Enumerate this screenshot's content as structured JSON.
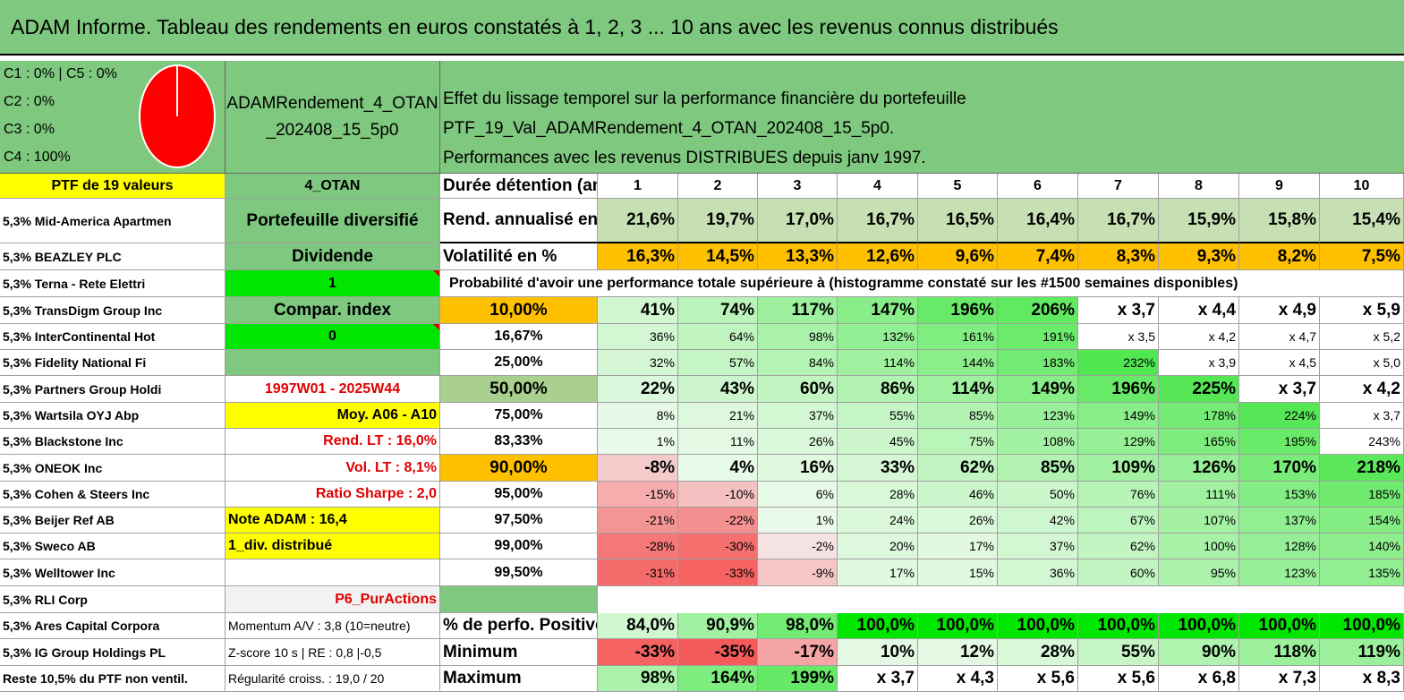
{
  "title": "ADAM Informe. Tableau des rendements en euros constatés à 1, 2, 3 ... 10 ans avec les revenus connus distribués",
  "header": {
    "c1c5": "C1 : 0% | C5 : 0%",
    "c2": "C2 : 0%",
    "c3": "C3 : 0%",
    "c4": "C4 : 100%",
    "pie": {
      "slices": [
        {
          "name": "C4",
          "value": 100,
          "color": "#ff0000"
        }
      ],
      "outline": "#ffffff"
    },
    "portfolio_line1": "ADAMRendement_4_OTAN",
    "portfolio_line2": "_202408_15_5p0",
    "desc_line1": "Effet du lissage temporel sur la performance financière du portefeuille PTF_19_Val_ADAMRendement_4_OTAN_202408_15_5p0.",
    "desc_line2": "Performances avec les revenus DISTRIBUES depuis janv 1997."
  },
  "colors": {
    "header_green": "#7fc87f",
    "yellow": "#ffff00",
    "bright_green": "#00e600",
    "orange": "#ffc000",
    "red_text": "#e00000"
  },
  "left_header": "PTF de 19 valeurs",
  "holdings": [
    "5,3% Mid-America Apartmen",
    "5,3% BEAZLEY PLC",
    "5,3% Terna - Rete Elettri",
    "5,3% TransDigm Group Inc",
    "5,3% InterContinental Hot",
    "5,3% Fidelity National Fi",
    "5,3% Partners Group Holdi",
    "5,3% Wartsila OYJ Abp",
    "5,3% Blackstone Inc",
    "5,3% ONEOK Inc",
    "5,3% Cohen & Steers Inc",
    "5,3% Beijer Ref AB",
    "5,3% Sweco AB",
    "5,3% Welltower Inc",
    "5,3% RLI Corp",
    "5,3% Ares Capital Corpora",
    "5,3% IG Group Holdings PL",
    "Reste 10,5% du PTF non ventil."
  ],
  "mid_col": [
    "4_OTAN",
    "Portefeuille diversifié",
    "Dividende",
    "1",
    "Compar. index",
    "0",
    "",
    "1997W01 - 2025W44",
    "Moy. A06 - A10",
    "Rend. LT : 16,0%",
    "Vol. LT : 8,1%",
    "Ratio Sharpe : 2,0",
    "Note ADAM : 16,4",
    "1_div. distribué",
    "",
    "P6_PurActions",
    "Momentum A/V : 3,8 (10=neutre)",
    "Z-score 10 s | RE : 0,8 |-0,5",
    "Régularité croiss. : 19,0 / 20"
  ],
  "table": {
    "duration_label": "Durée détention (an)",
    "years": [
      "1",
      "2",
      "3",
      "4",
      "5",
      "6",
      "7",
      "8",
      "9",
      "10"
    ],
    "rend_label": "Rend. annualisé en %",
    "rend": [
      "21,6%",
      "19,7%",
      "17,0%",
      "16,7%",
      "16,5%",
      "16,4%",
      "16,7%",
      "15,9%",
      "15,8%",
      "15,4%"
    ],
    "vol_label": "Volatilité en %",
    "vol": [
      "16,3%",
      "14,5%",
      "13,3%",
      "12,6%",
      "9,6%",
      "7,4%",
      "8,3%",
      "9,3%",
      "8,2%",
      "7,5%"
    ],
    "prob_title": "Probabilité d'avoir une performance totale supérieure à (histogramme constaté sur les #1500 semaines disponibles)",
    "prob_rows": [
      {
        "p": "10,00%",
        "v": [
          "41%",
          "74%",
          "117%",
          "147%",
          "196%",
          "206%",
          "x 3,7",
          "x 4,4",
          "x 4,9",
          "x 5,9"
        ]
      },
      {
        "p": "16,67%",
        "v": [
          "36%",
          "64%",
          "98%",
          "132%",
          "161%",
          "191%",
          "x 3,5",
          "x 4,2",
          "x 4,7",
          "x 5,2"
        ]
      },
      {
        "p": "25,00%",
        "v": [
          "32%",
          "57%",
          "84%",
          "114%",
          "144%",
          "183%",
          "232%",
          "x 3,9",
          "x 4,5",
          "x 5,0"
        ]
      },
      {
        "p": "50,00%",
        "v": [
          "22%",
          "43%",
          "60%",
          "86%",
          "114%",
          "149%",
          "196%",
          "225%",
          "x 3,7",
          "x 4,2"
        ]
      },
      {
        "p": "75,00%",
        "v": [
          "8%",
          "21%",
          "37%",
          "55%",
          "85%",
          "123%",
          "149%",
          "178%",
          "224%",
          "x 3,7"
        ]
      },
      {
        "p": "83,33%",
        "v": [
          "1%",
          "11%",
          "26%",
          "45%",
          "75%",
          "108%",
          "129%",
          "165%",
          "195%",
          "243%"
        ]
      },
      {
        "p": "90,00%",
        "v": [
          "-8%",
          "4%",
          "16%",
          "33%",
          "62%",
          "85%",
          "109%",
          "126%",
          "170%",
          "218%"
        ]
      },
      {
        "p": "95,00%",
        "v": [
          "-15%",
          "-10%",
          "6%",
          "28%",
          "46%",
          "50%",
          "76%",
          "111%",
          "153%",
          "185%"
        ]
      },
      {
        "p": "97,50%",
        "v": [
          "-21%",
          "-22%",
          "1%",
          "24%",
          "26%",
          "42%",
          "67%",
          "107%",
          "137%",
          "154%"
        ]
      },
      {
        "p": "99,00%",
        "v": [
          "-28%",
          "-30%",
          "-2%",
          "20%",
          "17%",
          "37%",
          "62%",
          "100%",
          "128%",
          "140%"
        ]
      },
      {
        "p": "99,50%",
        "v": [
          "-31%",
          "-33%",
          "-9%",
          "17%",
          "15%",
          "36%",
          "60%",
          "95%",
          "123%",
          "135%"
        ]
      }
    ],
    "pos_label": "% de perfo. Positives",
    "pos": [
      "84,0%",
      "90,9%",
      "98,0%",
      "100,0%",
      "100,0%",
      "100,0%",
      "100,0%",
      "100,0%",
      "100,0%",
      "100,0%"
    ],
    "min_label": "Minimum",
    "min": [
      "-33%",
      "-35%",
      "-17%",
      "10%",
      "12%",
      "28%",
      "55%",
      "90%",
      "118%",
      "119%"
    ],
    "max_label": "Maximum",
    "max": [
      "98%",
      "164%",
      "199%",
      "x 3,7",
      "x 4,3",
      "x 5,6",
      "x 5,6",
      "x 6,8",
      "x 7,3",
      "x 8,3"
    ]
  }
}
